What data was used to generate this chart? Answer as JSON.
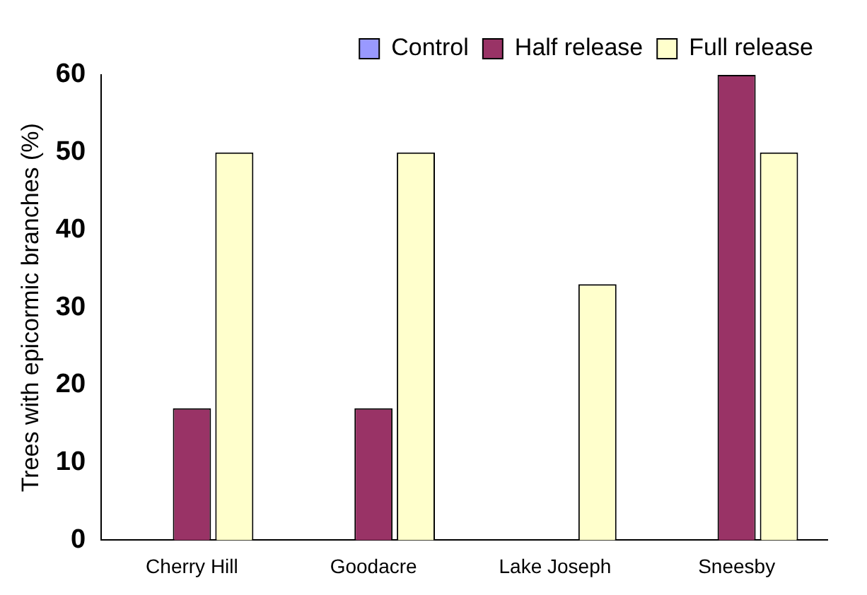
{
  "chart_data": {
    "type": "bar",
    "ylabel": "Trees with epicormic branches (%)",
    "categories": [
      "Cherry Hill",
      "Goodacre",
      "Lake Joseph",
      "Sneesby"
    ],
    "series": [
      {
        "name": "Control",
        "color": "#9999ff",
        "values": [
          0,
          0,
          0,
          0
        ]
      },
      {
        "name": "Half release",
        "color": "#993366",
        "values": [
          17,
          17,
          0,
          60
        ]
      },
      {
        "name": "Full release",
        "color": "#ffffcc",
        "values": [
          50,
          50,
          33,
          50
        ]
      }
    ],
    "ylim": [
      0,
      60
    ],
    "yticks": [
      0,
      10,
      20,
      30,
      40,
      50,
      60
    ],
    "grid": false,
    "legend": "top right"
  }
}
